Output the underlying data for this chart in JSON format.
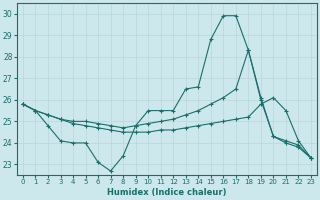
{
  "xlabel": "Humidex (Indice chaleur)",
  "background_color": "#cde8ec",
  "grid_color": "#b8d8dc",
  "line_color": "#1a6e6a",
  "xlim": [
    -0.5,
    23.5
  ],
  "ylim": [
    22.5,
    30.5
  ],
  "yticks": [
    23,
    24,
    25,
    26,
    27,
    28,
    29,
    30
  ],
  "xticks": [
    0,
    1,
    2,
    3,
    4,
    5,
    6,
    7,
    8,
    9,
    10,
    11,
    12,
    13,
    14,
    15,
    16,
    17,
    18,
    19,
    20,
    21,
    22,
    23
  ],
  "line1_x": [
    0,
    1,
    2,
    3,
    4,
    5,
    6,
    7,
    8,
    9,
    10,
    11,
    12,
    13,
    14,
    15,
    16,
    17,
    18,
    19,
    20,
    21,
    22,
    23
  ],
  "line1_y": [
    25.8,
    25.5,
    24.8,
    24.1,
    24.0,
    24.0,
    23.1,
    22.7,
    23.4,
    24.8,
    25.5,
    25.5,
    25.5,
    26.5,
    26.6,
    28.8,
    29.9,
    29.9,
    28.3,
    26.0,
    24.3,
    24.0,
    23.8,
    23.3
  ],
  "line2_x": [
    0,
    1,
    2,
    3,
    4,
    5,
    6,
    7,
    8,
    9,
    10,
    11,
    12,
    13,
    14,
    15,
    16,
    17,
    18,
    19,
    20,
    21,
    22,
    23
  ],
  "line2_y": [
    25.8,
    25.5,
    25.3,
    25.1,
    25.0,
    25.0,
    24.9,
    24.8,
    24.7,
    24.8,
    24.9,
    25.0,
    25.1,
    25.3,
    25.5,
    25.8,
    26.1,
    26.5,
    28.3,
    26.1,
    24.3,
    24.1,
    23.9,
    23.3
  ],
  "line3_x": [
    0,
    1,
    2,
    3,
    4,
    5,
    6,
    7,
    8,
    9,
    10,
    11,
    12,
    13,
    14,
    15,
    16,
    17,
    18,
    19,
    20,
    21,
    22,
    23
  ],
  "line3_y": [
    25.8,
    25.5,
    25.3,
    25.1,
    24.9,
    24.8,
    24.7,
    24.6,
    24.5,
    24.5,
    24.5,
    24.6,
    24.6,
    24.7,
    24.8,
    24.9,
    25.0,
    25.1,
    25.2,
    25.8,
    26.1,
    25.5,
    24.1,
    23.3
  ]
}
